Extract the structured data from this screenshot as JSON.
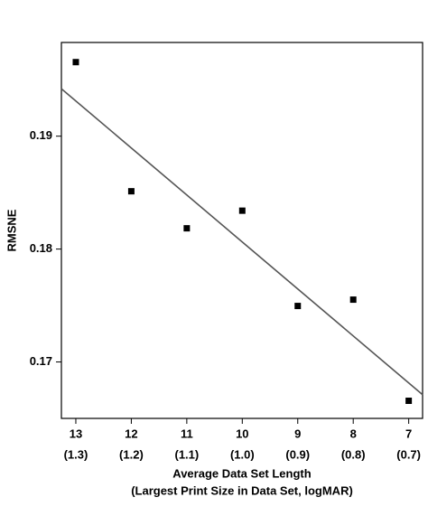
{
  "chart_data": {
    "type": "scatter",
    "x_label": [
      "Average Data Set Length",
      "(Largest Print Size in Data Set, logMAR)"
    ],
    "y_label": "RMSNE",
    "x": [
      13,
      12,
      11,
      10,
      9,
      8,
      7
    ],
    "values": [
      0.19656,
      0.18512,
      0.18184,
      0.1834,
      0.17496,
      0.17552,
      0.16656
    ],
    "color": "#000000",
    "fit_line": {
      "x": [
        13.26,
        6.75
      ],
      "y": [
        0.1942,
        0.1671
      ],
      "color": "#555555"
    },
    "xlim": [
      13.26,
      6.75
    ],
    "xticks": [
      13,
      12,
      11,
      10,
      9,
      8,
      7
    ],
    "xtick_sublabels": [
      "(1.3)",
      "(1.2)",
      "(1.1)",
      "(1.0)",
      "(0.9)",
      "(0.8)",
      "(0.7)"
    ],
    "ylim": [
      0.165,
      0.1983
    ],
    "yticks": [
      0.17,
      0.18,
      0.19
    ]
  }
}
